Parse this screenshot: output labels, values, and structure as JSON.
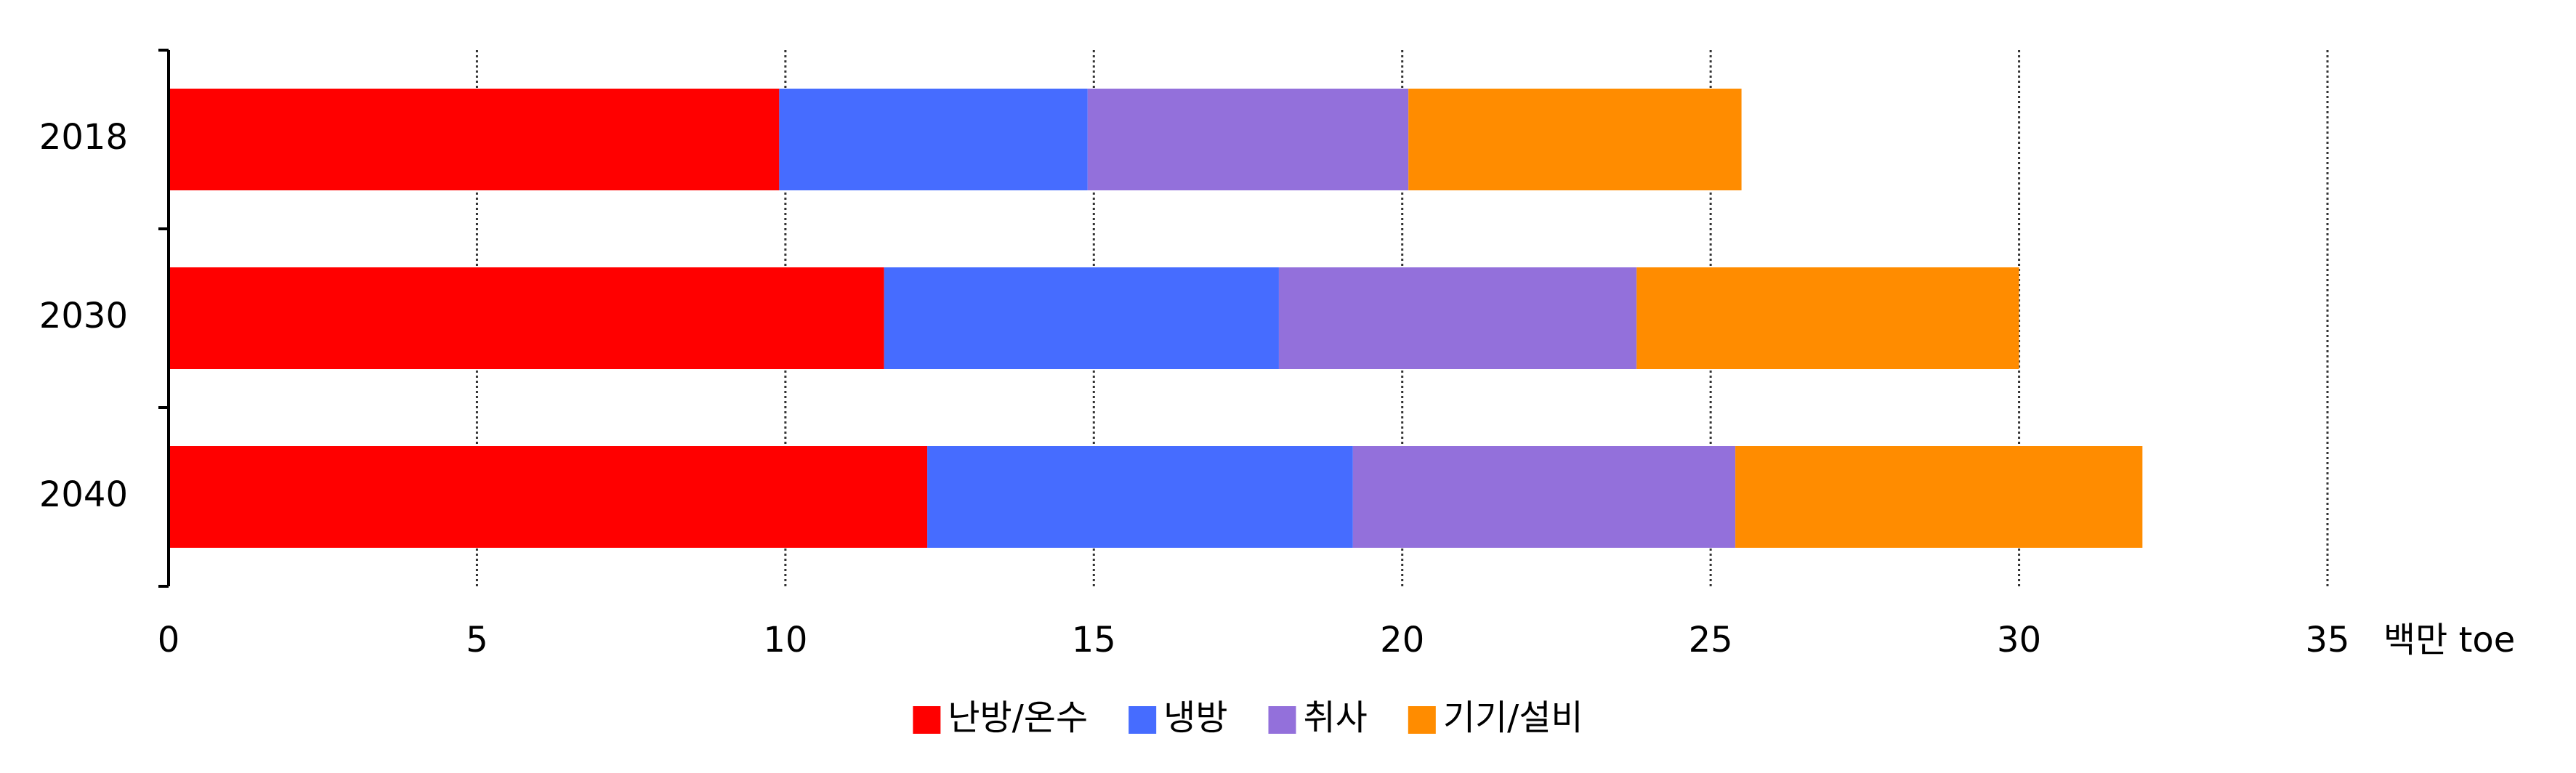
{
  "chart_data": {
    "type": "stacked-bar-horizontal",
    "categories": [
      "2018",
      "2030",
      "2040"
    ],
    "series": [
      {
        "name": "난방/온수",
        "color": "#ff0000",
        "values": [
          9.9,
          11.6,
          12.3
        ]
      },
      {
        "name": "냉방",
        "color": "#466cff",
        "values": [
          5.0,
          6.4,
          6.9
        ]
      },
      {
        "name": "취사",
        "color": "#9370db",
        "values": [
          5.2,
          5.8,
          6.2
        ]
      },
      {
        "name": "기기/설비",
        "color": "#ff8c00",
        "values": [
          5.4,
          6.2,
          6.6
        ]
      }
    ],
    "x_label": "백만 toe",
    "xlim": [
      0,
      35
    ],
    "xticks": [
      0,
      5,
      10,
      15,
      20,
      25,
      30,
      35
    ],
    "grid": true,
    "legend": "bottom"
  }
}
